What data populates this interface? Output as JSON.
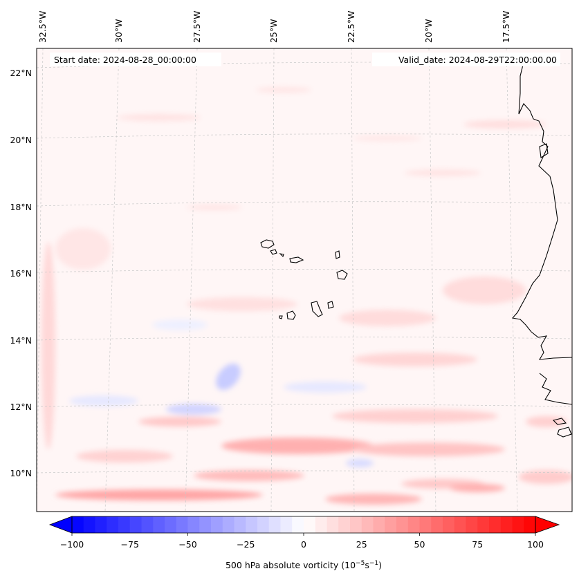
{
  "map": {
    "start_date": "Start date: 2024-08-28_00:00:00",
    "valid_date": "Valid_date: 2024-08-29T22:00:00.00",
    "lon_labels": [
      "32.5°W",
      "30°W",
      "27.5°W",
      "25°W",
      "22.5°W",
      "20°W",
      "17.5°W"
    ],
    "lat_labels": [
      "22°N",
      "20°N",
      "18°N",
      "16°N",
      "14°N",
      "12°N",
      "10°N"
    ]
  },
  "colorbar": {
    "ticks": [
      "−100",
      "−75",
      "−50",
      "−25",
      "0",
      "25",
      "50",
      "75",
      "100"
    ],
    "label": "500 hPa absolute vorticity",
    "units": "(10",
    "units_exp1": "−5",
    "units_mid": "s",
    "units_exp2": "−1",
    "units_end": ")",
    "min_color": "#0000ff",
    "mid_color": "#ffffff",
    "max_color": "#ff0000"
  }
}
